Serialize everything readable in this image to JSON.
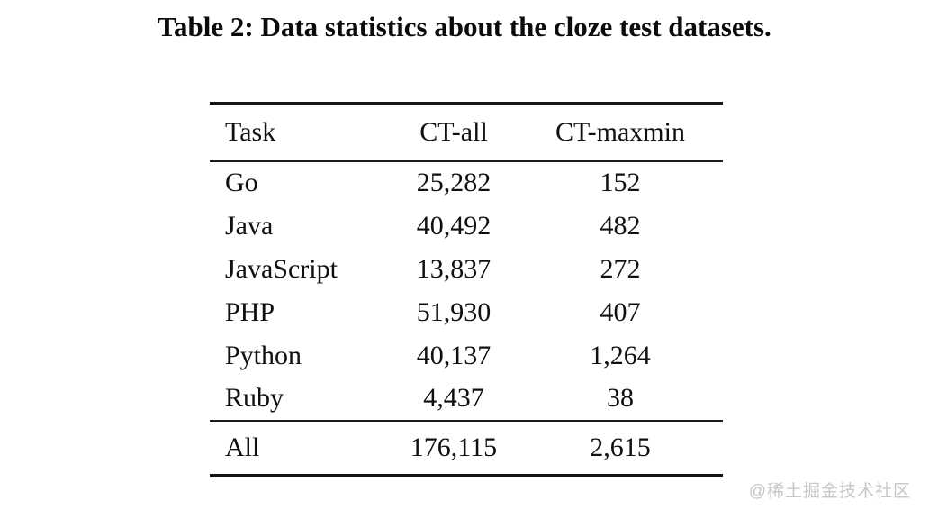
{
  "page": {
    "caption": "Table 2: Data statistics about the cloze test datasets.",
    "watermark": "@稀土掘金技术社区"
  },
  "chart_data": {
    "type": "table",
    "title": "Table 2: Data statistics about the cloze test datasets.",
    "columns": [
      "Task",
      "CT-all",
      "CT-maxmin"
    ],
    "rows": [
      {
        "task": "Go",
        "ct_all": "25,282",
        "ct_maxmin": "152"
      },
      {
        "task": "Java",
        "ct_all": "40,492",
        "ct_maxmin": "482"
      },
      {
        "task": "JavaScript",
        "ct_all": "13,837",
        "ct_maxmin": "272"
      },
      {
        "task": "PHP",
        "ct_all": "51,930",
        "ct_maxmin": "407"
      },
      {
        "task": "Python",
        "ct_all": "40,137",
        "ct_maxmin": "1,264"
      },
      {
        "task": "Ruby",
        "ct_all": "4,437",
        "ct_maxmin": "38"
      }
    ],
    "footer": {
      "task": "All",
      "ct_all": "176,115",
      "ct_maxmin": "2,615"
    }
  },
  "colors": {
    "text": "#0d0d0d",
    "rule": "#161616",
    "watermark": "#c7c7c7",
    "background": "#ffffff"
  }
}
